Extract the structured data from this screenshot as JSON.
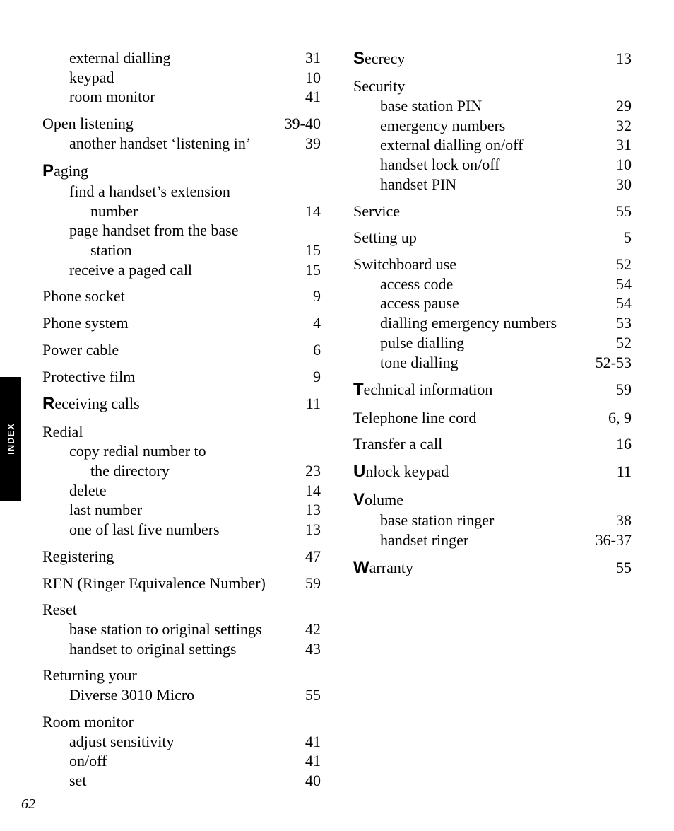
{
  "side_tab": "INDEX",
  "page_number": "62",
  "columns": [
    [
      {
        "items": [
          {
            "level": "sub",
            "label": "external dialling",
            "page": "31"
          },
          {
            "level": "sub",
            "label": "keypad",
            "page": "10"
          },
          {
            "level": "sub",
            "label": "room monitor",
            "page": "41"
          }
        ]
      },
      {
        "items": [
          {
            "level": "main",
            "label": "Open listening",
            "page": "39-40"
          },
          {
            "level": "sub",
            "label": "another handset ‘listening in’",
            "page": "39"
          }
        ]
      },
      {
        "items": [
          {
            "level": "main",
            "letter": "P",
            "rest": "aging"
          },
          {
            "level": "sub",
            "label": "find a handset’s extension"
          },
          {
            "level": "cont",
            "label": "number",
            "page": "14"
          },
          {
            "level": "sub",
            "label": "page handset from the base"
          },
          {
            "level": "cont",
            "label": "station",
            "page": "15"
          },
          {
            "level": "sub",
            "label": "receive a paged call",
            "page": "15"
          }
        ]
      },
      {
        "items": [
          {
            "level": "main",
            "label": "Phone socket",
            "page": "9"
          }
        ]
      },
      {
        "items": [
          {
            "level": "main",
            "label": "Phone system",
            "page": "4"
          }
        ]
      },
      {
        "items": [
          {
            "level": "main",
            "label": "Power cable",
            "page": "6"
          }
        ]
      },
      {
        "items": [
          {
            "level": "main",
            "label": "Protective film",
            "page": "9"
          }
        ]
      },
      {
        "items": [
          {
            "level": "main",
            "letter": "R",
            "rest": "eceiving calls",
            "page": "11"
          }
        ]
      },
      {
        "items": [
          {
            "level": "main",
            "label": "Redial"
          },
          {
            "level": "sub",
            "label": "copy redial number to"
          },
          {
            "level": "cont",
            "label": "the directory",
            "page": "23"
          },
          {
            "level": "sub",
            "label": "delete",
            "page": "14"
          },
          {
            "level": "sub",
            "label": "last number",
            "page": "13"
          },
          {
            "level": "sub",
            "label": "one of last five numbers",
            "page": "13"
          }
        ]
      },
      {
        "items": [
          {
            "level": "main",
            "label": "Registering",
            "page": "47"
          }
        ]
      },
      {
        "items": [
          {
            "level": "main",
            "label": "REN (Ringer Equivalence Number)",
            "page": "59"
          }
        ]
      },
      {
        "items": [
          {
            "level": "main",
            "label": "Reset"
          },
          {
            "level": "sub",
            "label": "base station to original settings",
            "page": "42"
          },
          {
            "level": "sub",
            "label": "handset to original settings",
            "page": "43"
          }
        ]
      },
      {
        "items": [
          {
            "level": "main",
            "label": "Returning your"
          },
          {
            "level": "sub",
            "label": "Diverse 3010 Micro",
            "page": "55"
          }
        ]
      },
      {
        "items": [
          {
            "level": "main",
            "label": "Room monitor"
          },
          {
            "level": "sub",
            "label": "adjust sensitivity",
            "page": "41"
          },
          {
            "level": "sub",
            "label": "on/off",
            "page": "41"
          },
          {
            "level": "sub",
            "label": "set",
            "page": "40"
          }
        ]
      }
    ],
    [
      {
        "items": [
          {
            "level": "main",
            "letter": "S",
            "rest": "ecrecy",
            "page": "13"
          }
        ]
      },
      {
        "items": [
          {
            "level": "main",
            "label": "Security"
          },
          {
            "level": "sub",
            "label": "base station PIN",
            "page": "29"
          },
          {
            "level": "sub",
            "label": "emergency numbers",
            "page": "32"
          },
          {
            "level": "sub",
            "label": "external dialling on/off",
            "page": "31"
          },
          {
            "level": "sub",
            "label": "handset lock on/off",
            "page": "10"
          },
          {
            "level": "sub",
            "label": "handset PIN",
            "page": "30"
          }
        ]
      },
      {
        "items": [
          {
            "level": "main",
            "label": "Service",
            "page": "55"
          }
        ]
      },
      {
        "items": [
          {
            "level": "main",
            "label": "Setting up",
            "page": "5"
          }
        ]
      },
      {
        "items": [
          {
            "level": "main",
            "label": "Switchboard use",
            "page": "52"
          },
          {
            "level": "sub",
            "label": "access code",
            "page": "54"
          },
          {
            "level": "sub",
            "label": "access pause",
            "page": "54"
          },
          {
            "level": "sub",
            "label": "dialling emergency numbers",
            "page": "53"
          },
          {
            "level": "sub",
            "label": "pulse dialling",
            "page": "52"
          },
          {
            "level": "sub",
            "label": "tone dialling",
            "page": "52-53"
          }
        ]
      },
      {
        "items": [
          {
            "level": "main",
            "letter": "T",
            "rest": "echnical information",
            "page": "59"
          }
        ]
      },
      {
        "items": [
          {
            "level": "main",
            "label": "Telephone line cord",
            "page": "6, 9"
          }
        ]
      },
      {
        "items": [
          {
            "level": "main",
            "label": "Transfer a call",
            "page": "16"
          }
        ]
      },
      {
        "items": [
          {
            "level": "main",
            "letter": "U",
            "rest": "nlock keypad",
            "page": "11"
          }
        ]
      },
      {
        "items": [
          {
            "level": "main",
            "letter": "V",
            "rest": "olume"
          },
          {
            "level": "sub",
            "label": "base station ringer",
            "page": "38"
          },
          {
            "level": "sub",
            "label": "handset ringer",
            "page": "36-37"
          }
        ]
      },
      {
        "items": [
          {
            "level": "main",
            "letter": "W",
            "rest": "arranty",
            "page": "55"
          }
        ]
      }
    ]
  ]
}
